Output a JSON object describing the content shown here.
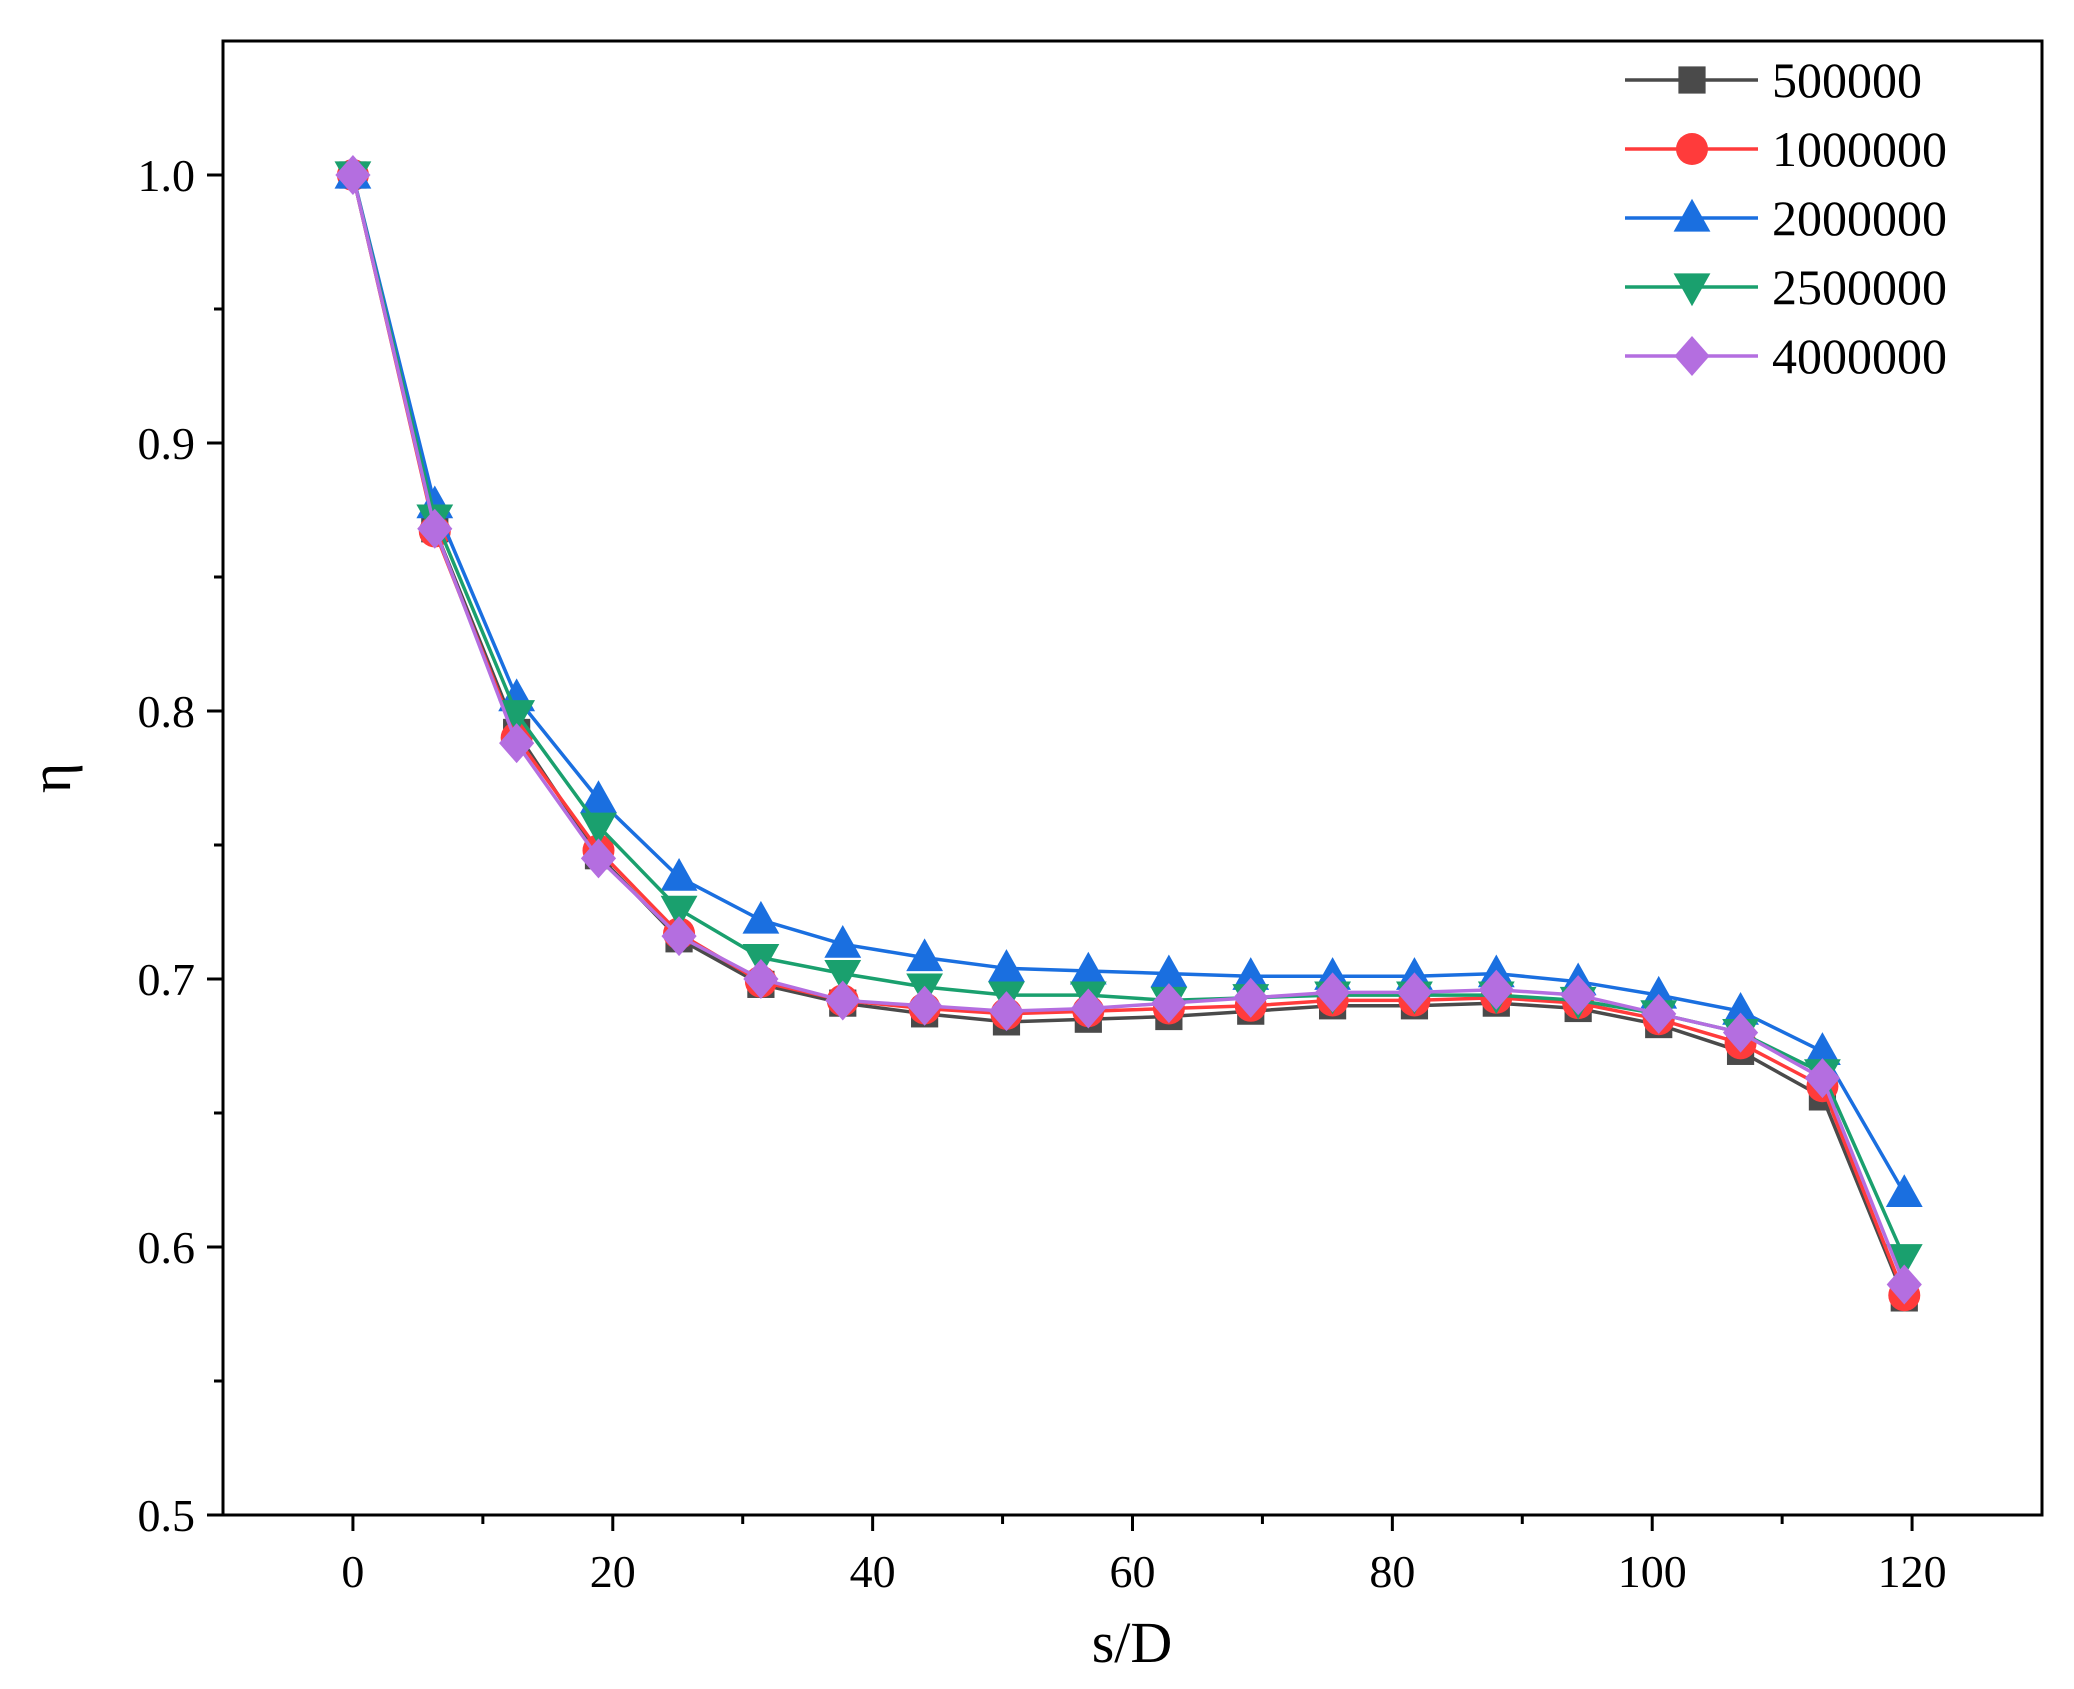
{
  "chart_data": {
    "type": "line",
    "title": "",
    "xlabel": "s/D",
    "ylabel": "η",
    "xlim": [
      -10,
      130
    ],
    "ylim": [
      0.5,
      1.05
    ],
    "xticks": [
      0,
      20,
      40,
      60,
      80,
      100,
      120
    ],
    "xtick_labels": [
      "0",
      "20",
      "40",
      "60",
      "80",
      "100",
      "120"
    ],
    "yticks": [
      0.5,
      0.6,
      0.7,
      0.8,
      0.9,
      1.0
    ],
    "ytick_labels": [
      "0.5",
      "0.6",
      "0.7",
      "0.8",
      "0.9",
      "1.0"
    ],
    "grid": false,
    "legend_position": "top-right",
    "x": [
      0,
      6.3,
      12.6,
      18.9,
      25.1,
      31.4,
      37.7,
      44.0,
      50.3,
      56.6,
      62.8,
      69.1,
      75.4,
      81.7,
      88.0,
      94.3,
      100.5,
      106.8,
      113.1,
      119.4
    ],
    "series": [
      {
        "name": "500000",
        "color": "#4a4a4a",
        "marker": "square",
        "values": [
          1.0,
          0.868,
          0.792,
          0.746,
          0.715,
          0.698,
          0.691,
          0.687,
          0.684,
          0.685,
          0.686,
          0.688,
          0.69,
          0.69,
          0.691,
          0.689,
          0.683,
          0.673,
          0.656,
          0.581
        ]
      },
      {
        "name": "1000000",
        "color": "#ff3b3b",
        "marker": "circle",
        "values": [
          1.0,
          0.867,
          0.79,
          0.748,
          0.717,
          0.699,
          0.692,
          0.689,
          0.687,
          0.688,
          0.689,
          0.69,
          0.692,
          0.692,
          0.693,
          0.691,
          0.685,
          0.676,
          0.66,
          0.582
        ]
      },
      {
        "name": "2000000",
        "color": "#1a6fe0",
        "marker": "triangle-up",
        "values": [
          1.0,
          0.877,
          0.805,
          0.767,
          0.738,
          0.722,
          0.713,
          0.708,
          0.704,
          0.703,
          0.702,
          0.701,
          0.701,
          0.701,
          0.702,
          0.699,
          0.694,
          0.688,
          0.673,
          0.62
        ]
      },
      {
        "name": "2500000",
        "color": "#1aa06e",
        "marker": "triangle-down",
        "values": [
          1.0,
          0.872,
          0.799,
          0.757,
          0.726,
          0.708,
          0.702,
          0.697,
          0.694,
          0.694,
          0.692,
          0.693,
          0.694,
          0.694,
          0.694,
          0.692,
          0.687,
          0.68,
          0.665,
          0.596
        ]
      },
      {
        "name": "4000000",
        "color": "#b46ee0",
        "marker": "diamond",
        "values": [
          1.0,
          0.868,
          0.788,
          0.745,
          0.716,
          0.7,
          0.692,
          0.69,
          0.688,
          0.689,
          0.691,
          0.693,
          0.695,
          0.695,
          0.696,
          0.694,
          0.687,
          0.68,
          0.663,
          0.586
        ]
      }
    ]
  }
}
